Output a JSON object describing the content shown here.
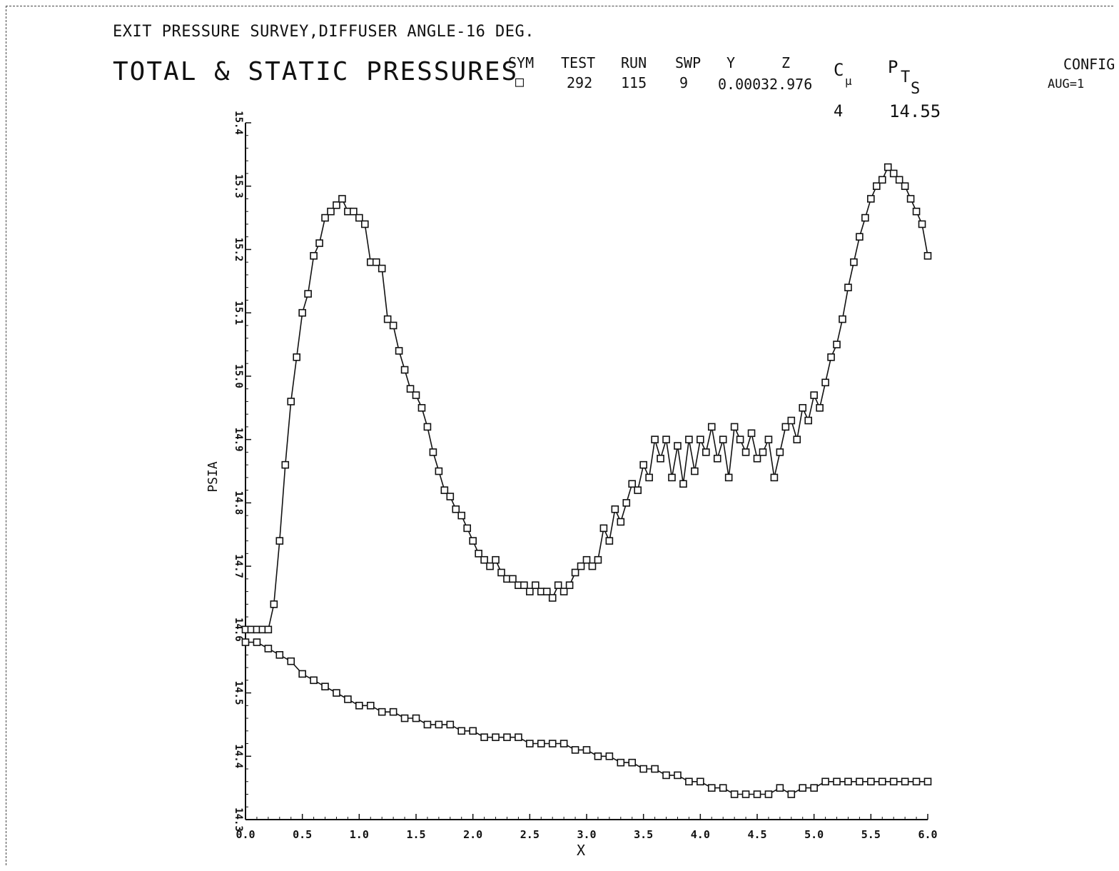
{
  "header": {
    "subtitle": "EXIT PRESSURE SURVEY,DIFFUSER ANGLE-16 DEG.",
    "title": "TOTAL & STATIC PRESSURES"
  },
  "legend": {
    "headers": {
      "sym": "SYM",
      "test": "TEST",
      "run": "RUN",
      "swp": "SWP",
      "y": "Y",
      "z": "Z",
      "cmu": "C",
      "cmu_sub": "µ",
      "pts": "P",
      "pts_sub1": "T",
      "pts_sub2": "S",
      "config": "CONFIG"
    },
    "row": {
      "sym": "□",
      "test": "292",
      "run": "115",
      "swp": "9",
      "y": "0.000",
      "z": "32.976",
      "config": "AUG=1"
    },
    "row2": {
      "cmu": "4",
      "pts": "14.55"
    }
  },
  "chart_data": {
    "type": "line",
    "xlabel": "X",
    "ylabel": "PSIA",
    "xlim": [
      0.0,
      6.0
    ],
    "ylim": [
      14.3,
      15.4
    ],
    "xticks": [
      0.0,
      0.5,
      1.0,
      1.5,
      2.0,
      2.5,
      3.0,
      3.5,
      4.0,
      4.5,
      5.0,
      5.5,
      6.0
    ],
    "xtick_labels": [
      "0.0",
      "0.5",
      "1.0",
      "1.5",
      "2.0",
      "2.5",
      "3.0",
      "3.5",
      "4.0",
      "4.5",
      "5.0",
      "5.5",
      "6.0"
    ],
    "yticks": [
      14.3,
      14.4,
      14.5,
      14.6,
      14.7,
      14.8,
      14.9,
      15.0,
      15.1,
      15.2,
      15.3,
      15.4
    ],
    "ytick_labels": [
      "14.3",
      "14.4",
      "14.5",
      "14.6",
      "14.7",
      "14.8",
      "14.9",
      "15.0",
      "15.1",
      "15.2",
      "15.3",
      "15.4"
    ],
    "grid": false,
    "marker": "square",
    "series": [
      {
        "x": [
          0.0,
          0.05,
          0.1,
          0.15,
          0.2,
          0.25,
          0.3,
          0.35,
          0.4,
          0.45,
          0.5,
          0.55,
          0.6,
          0.65,
          0.7,
          0.75,
          0.8,
          0.85,
          0.9,
          0.95,
          1.0,
          1.05,
          1.1,
          1.15,
          1.2,
          1.25,
          1.3,
          1.35,
          1.4,
          1.45,
          1.5,
          1.55,
          1.6,
          1.65,
          1.7,
          1.75,
          1.8,
          1.85,
          1.9,
          1.95,
          2.0,
          2.05,
          2.1,
          2.15,
          2.2,
          2.25,
          2.3,
          2.35,
          2.4,
          2.45,
          2.5,
          2.55,
          2.6,
          2.65,
          2.7,
          2.75,
          2.8,
          2.85,
          2.9,
          2.95,
          3.0,
          3.05,
          3.1,
          3.15,
          3.2,
          3.25,
          3.3,
          3.35,
          3.4,
          3.45,
          3.5,
          3.55,
          3.6,
          3.65,
          3.7,
          3.75,
          3.8,
          3.85,
          3.9,
          3.95,
          4.0,
          4.05,
          4.1,
          4.15,
          4.2,
          4.25,
          4.3,
          4.35,
          4.4,
          4.45,
          4.5,
          4.55,
          4.6,
          4.65,
          4.7,
          4.75,
          4.8,
          4.85,
          4.9,
          4.95,
          5.0,
          5.05,
          5.1,
          5.15,
          5.2,
          5.25,
          5.3,
          5.35,
          5.4,
          5.45,
          5.5,
          5.55,
          5.6,
          5.65,
          5.7,
          5.75,
          5.8,
          5.85,
          5.9,
          5.95,
          6.0
        ],
        "y": [
          14.6,
          14.6,
          14.6,
          14.6,
          14.6,
          14.64,
          14.74,
          14.86,
          14.96,
          15.03,
          15.1,
          15.13,
          15.19,
          15.21,
          15.25,
          15.26,
          15.27,
          15.28,
          15.26,
          15.26,
          15.25,
          15.24,
          15.18,
          15.18,
          15.17,
          15.09,
          15.08,
          15.04,
          15.01,
          14.98,
          14.97,
          14.95,
          14.92,
          14.88,
          14.85,
          14.82,
          14.81,
          14.79,
          14.78,
          14.76,
          14.74,
          14.72,
          14.71,
          14.7,
          14.71,
          14.69,
          14.68,
          14.68,
          14.67,
          14.67,
          14.66,
          14.67,
          14.66,
          14.66,
          14.65,
          14.67,
          14.66,
          14.67,
          14.69,
          14.7,
          14.71,
          14.7,
          14.71,
          14.76,
          14.74,
          14.79,
          14.77,
          14.8,
          14.83,
          14.82,
          14.86,
          14.84,
          14.9,
          14.87,
          14.9,
          14.84,
          14.89,
          14.83,
          14.9,
          14.85,
          14.9,
          14.88,
          14.92,
          14.87,
          14.9,
          14.84,
          14.92,
          14.9,
          14.88,
          14.91,
          14.87,
          14.88,
          14.9,
          14.84,
          14.88,
          14.92,
          14.93,
          14.9,
          14.95,
          14.93,
          14.97,
          14.95,
          14.99,
          15.03,
          15.05,
          15.09,
          15.14,
          15.18,
          15.22,
          15.25,
          15.28,
          15.3,
          15.31,
          15.33,
          15.32,
          15.31,
          15.3,
          15.28,
          15.26,
          15.24,
          15.19
        ]
      },
      {
        "x": [
          0.0,
          0.1,
          0.2,
          0.3,
          0.4,
          0.5,
          0.6,
          0.7,
          0.8,
          0.9,
          1.0,
          1.1,
          1.2,
          1.3,
          1.4,
          1.5,
          1.6,
          1.7,
          1.8,
          1.9,
          2.0,
          2.1,
          2.2,
          2.3,
          2.4,
          2.5,
          2.6,
          2.7,
          2.8,
          2.9,
          3.0,
          3.1,
          3.2,
          3.3,
          3.4,
          3.5,
          3.6,
          3.7,
          3.8,
          3.9,
          4.0,
          4.1,
          4.2,
          4.3,
          4.4,
          4.5,
          4.6,
          4.7,
          4.8,
          4.9,
          5.0,
          5.1,
          5.2,
          5.3,
          5.4,
          5.5,
          5.6,
          5.7,
          5.8,
          5.9,
          6.0
        ],
        "y": [
          14.58,
          14.58,
          14.57,
          14.56,
          14.55,
          14.53,
          14.52,
          14.51,
          14.5,
          14.49,
          14.48,
          14.48,
          14.47,
          14.47,
          14.46,
          14.46,
          14.45,
          14.45,
          14.45,
          14.44,
          14.44,
          14.43,
          14.43,
          14.43,
          14.43,
          14.42,
          14.42,
          14.42,
          14.42,
          14.41,
          14.41,
          14.4,
          14.4,
          14.39,
          14.39,
          14.38,
          14.38,
          14.37,
          14.37,
          14.36,
          14.36,
          14.35,
          14.35,
          14.34,
          14.34,
          14.34,
          14.34,
          14.35,
          14.34,
          14.35,
          14.35,
          14.36,
          14.36,
          14.36,
          14.36,
          14.36,
          14.36,
          14.36,
          14.36,
          14.36,
          14.36
        ]
      }
    ]
  }
}
